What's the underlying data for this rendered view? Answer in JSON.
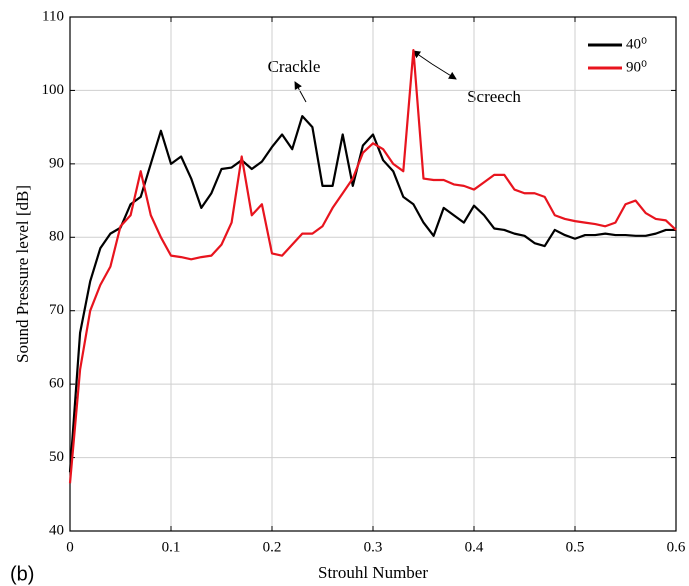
{
  "chart_data": {
    "type": "line",
    "xlabel": "Strouhl Number",
    "ylabel": "Sound Pressure level [dB]",
    "panel_label": "(b)",
    "annotations": [
      {
        "text": "Crackle"
      },
      {
        "text": "Screech"
      }
    ],
    "x": [
      0,
      0.01,
      0.02,
      0.03,
      0.04,
      0.05,
      0.06,
      0.07,
      0.08,
      0.09,
      0.1,
      0.11,
      0.12,
      0.13,
      0.14,
      0.15,
      0.16,
      0.17,
      0.18,
      0.19,
      0.2,
      0.21,
      0.22,
      0.23,
      0.24,
      0.25,
      0.26,
      0.27,
      0.28,
      0.29,
      0.3,
      0.31,
      0.32,
      0.33,
      0.34,
      0.35,
      0.36,
      0.37,
      0.38,
      0.39,
      0.4,
      0.41,
      0.42,
      0.43,
      0.44,
      0.45,
      0.46,
      0.47,
      0.48,
      0.49,
      0.5,
      0.51,
      0.52,
      0.53,
      0.54,
      0.55,
      0.56,
      0.57,
      0.58,
      0.59,
      0.6
    ],
    "series": [
      {
        "name": "40⁰",
        "color": "#000000",
        "values": [
          48,
          67,
          74,
          78.5,
          80.5,
          81.3,
          84.5,
          85.5,
          90,
          94.5,
          90,
          91,
          88,
          84,
          86,
          89.3,
          89.5,
          90.5,
          89.3,
          90.3,
          92.3,
          94,
          92,
          96.5,
          95,
          87,
          87,
          94,
          87,
          92.5,
          94,
          90.5,
          89,
          85.5,
          84.5,
          82,
          80.2,
          84,
          83,
          82,
          84.3,
          83,
          81.2,
          81,
          80.5,
          80.2,
          79.2,
          78.8,
          81,
          80.3,
          79.8,
          80.3,
          80.3,
          80.5,
          80.3,
          80.3,
          80.2,
          80.2,
          80.5,
          81,
          81
        ]
      },
      {
        "name": "90⁰",
        "color": "#e8141e",
        "values": [
          46.5,
          62,
          70,
          73.5,
          76,
          81.5,
          83,
          89,
          83,
          80,
          77.5,
          77.3,
          77,
          77.3,
          77.5,
          79,
          82,
          91,
          83,
          84.5,
          77.8,
          77.5,
          79,
          80.5,
          80.5,
          81.5,
          84,
          86,
          88,
          91.5,
          92.8,
          92,
          90,
          89,
          105.5,
          88,
          87.8,
          87.8,
          87.2,
          87,
          86.5,
          87.5,
          88.5,
          88.5,
          86.5,
          86,
          86,
          85.5,
          83,
          82.5,
          82.2,
          82,
          81.8,
          81.5,
          82,
          84.5,
          85,
          83.3,
          82.5,
          82.3,
          81
        ]
      }
    ],
    "xlim": [
      0,
      0.6
    ],
    "ylim": [
      40,
      110
    ],
    "xticks": [
      0,
      0.1,
      0.2,
      0.3,
      0.4,
      0.5,
      0.6
    ],
    "yticks": [
      40,
      50,
      60,
      70,
      80,
      90,
      100,
      110
    ],
    "grid": true,
    "legend": "upper right"
  }
}
